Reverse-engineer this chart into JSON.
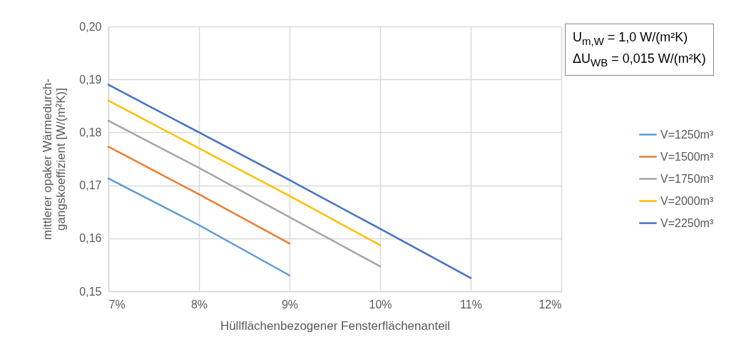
{
  "chart_data": {
    "type": "line",
    "xlabel": "Hüllflächenbezogener  Fensterflächenanteil",
    "ylabel": "mittlerer opaker  Wärmedurch-\ngangskoeffizient [W/(m²K)]",
    "xlim": [
      7,
      12
    ],
    "xticks": [
      {
        "value": 7,
        "label": "7%"
      },
      {
        "value": 8,
        "label": "8%"
      },
      {
        "value": 9,
        "label": "9%"
      },
      {
        "value": 10,
        "label": "10%"
      },
      {
        "value": 11,
        "label": "11%"
      },
      {
        "value": 12,
        "label": "12%"
      }
    ],
    "ylim": [
      0.15,
      0.2
    ],
    "yticks": [
      {
        "value": 0.15,
        "label": "0,15"
      },
      {
        "value": 0.16,
        "label": "0,16"
      },
      {
        "value": 0.17,
        "label": "0,17"
      },
      {
        "value": 0.18,
        "label": "0,18"
      },
      {
        "value": 0.19,
        "label": "0,19"
      },
      {
        "value": 0.2,
        "label": "0,20"
      }
    ],
    "grid": true,
    "legend": "right",
    "marker": "none",
    "line_style": "solid",
    "annotations": [
      "U$_{m,W}$ = 1,0 W/(m²K)",
      "ΔU$_{WB}$ = 0,015 W/(m²K)"
    ],
    "series": [
      {
        "name": "V=1250m³",
        "color": "#5b9bd5",
        "x": [
          7,
          8,
          9
        ],
        "values": [
          0.1713,
          0.1625,
          0.153
        ]
      },
      {
        "name": "V=1500m³",
        "color": "#ed7d31",
        "x": [
          7,
          8,
          9
        ],
        "values": [
          0.1773,
          0.1683,
          0.159
        ]
      },
      {
        "name": "V=1750m³",
        "color": "#a5a5a5",
        "x": [
          7,
          8,
          9,
          10
        ],
        "values": [
          0.1822,
          0.1733,
          0.164,
          0.1547
        ]
      },
      {
        "name": "V=2000m³",
        "color": "#ffc000",
        "x": [
          7,
          8,
          9,
          10
        ],
        "values": [
          0.186,
          0.177,
          0.168,
          0.1587
        ]
      },
      {
        "name": "V=2250m³",
        "color": "#4472c4",
        "x": [
          7,
          8,
          9,
          10,
          11
        ],
        "values": [
          0.189,
          0.18,
          0.171,
          0.1618,
          0.1525
        ]
      }
    ]
  }
}
